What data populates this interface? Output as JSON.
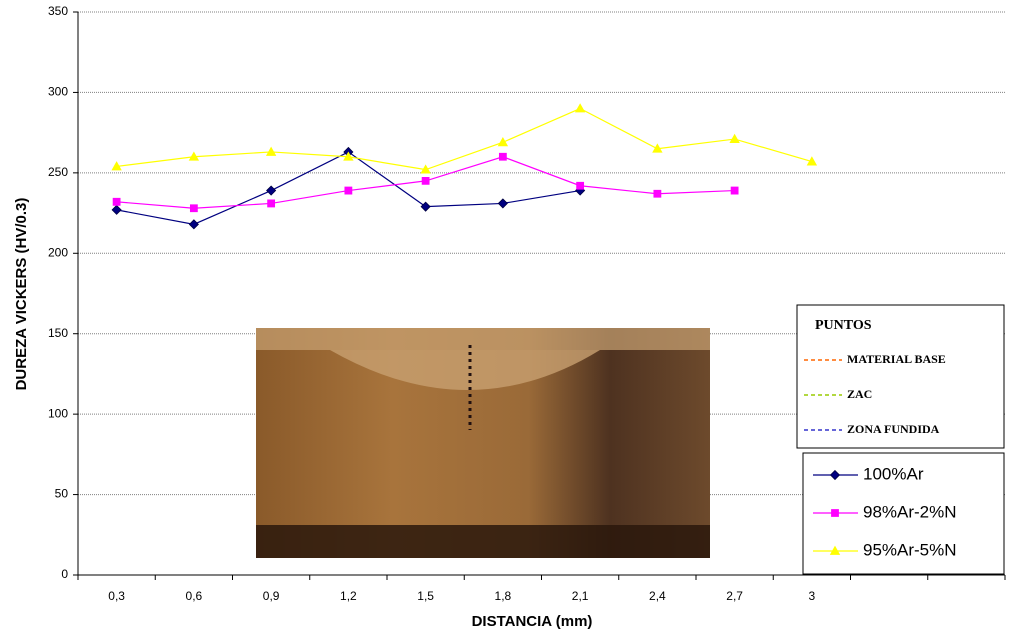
{
  "chart_data": {
    "type": "line",
    "x_label": "DISTANCIA (mm)",
    "y_label": "DUREZA VICKERS (HV/0.3)",
    "categories": [
      "0,3",
      "0,6",
      "0,9",
      "1,2",
      "1,5",
      "1,8",
      "2,1",
      "2,4",
      "2,7",
      "3",
      null,
      null
    ],
    "series": [
      {
        "name": "100%Ar",
        "color": "#000080",
        "marker": "diamond",
        "values": [
          227,
          218,
          239,
          263,
          229,
          231,
          239,
          null,
          null,
          null,
          null,
          null
        ]
      },
      {
        "name": "98%Ar-2%N",
        "color": "#ff00ff",
        "marker": "square",
        "values": [
          232,
          228,
          231,
          239,
          245,
          260,
          242,
          237,
          239,
          null,
          null,
          null
        ]
      },
      {
        "name": "95%Ar-5%N",
        "color": "#ffff00",
        "marker": "triangle",
        "values": [
          254,
          260,
          263,
          260,
          252,
          269,
          290,
          265,
          271,
          257,
          null,
          null
        ]
      }
    ],
    "ylim": [
      0,
      350
    ],
    "yticks": [
      0,
      50,
      100,
      150,
      200,
      250,
      300,
      350
    ],
    "grid": true,
    "points_legend": {
      "title": "PUNTOS",
      "items": [
        {
          "name": "MATERIAL BASE",
          "color": "#ff6600"
        },
        {
          "name": "ZAC",
          "color": "#99cc00"
        },
        {
          "name": "ZONA FUNDIDA",
          "color": "#3333cc"
        }
      ]
    }
  }
}
